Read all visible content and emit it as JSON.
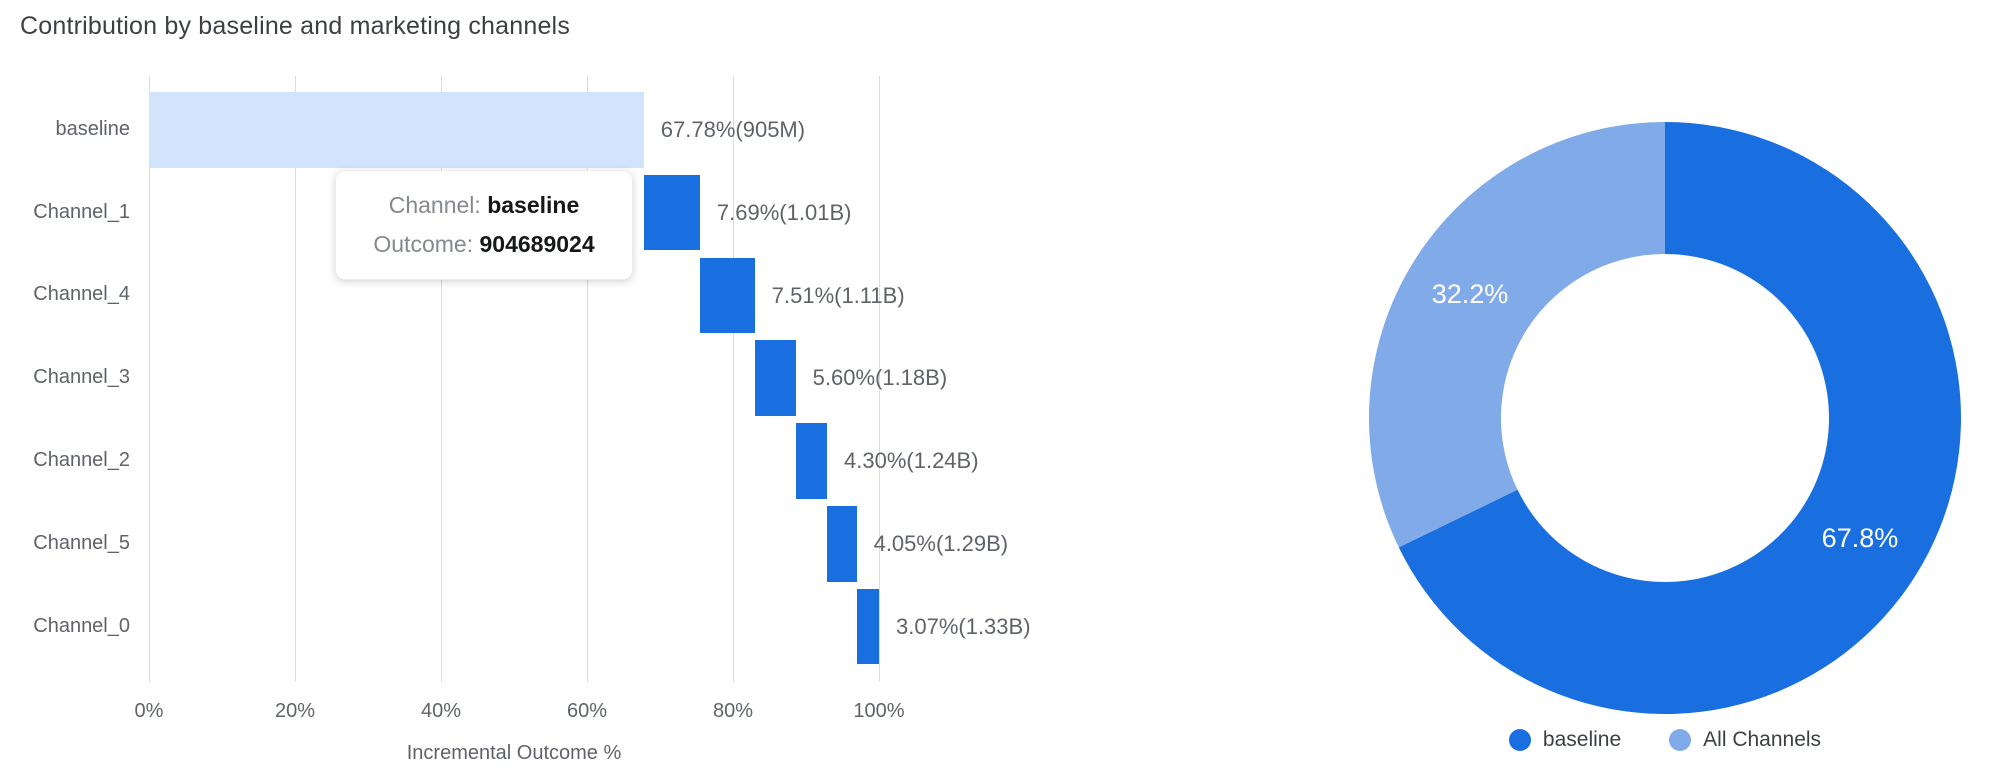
{
  "title": "Contribution by baseline and marketing channels",
  "colors": {
    "bar_blue": "#1a6fe0",
    "baseline_light": "#d2e3fc",
    "donut_dark": "#1a6fe0",
    "donut_light": "#80abe8",
    "grid": "#dadce0"
  },
  "tooltip": {
    "channel_label": "Channel:",
    "channel_value": "baseline",
    "outcome_label": "Outcome:",
    "outcome_value": "904689024"
  },
  "chart_data": [
    {
      "type": "bar",
      "subtype": "horizontal-waterfall",
      "title": "Contribution by baseline and marketing channels",
      "xlabel": "Incremental Outcome %",
      "xlim": [
        0,
        100
      ],
      "grid": true,
      "x_ticks": [
        "0%",
        "20%",
        "40%",
        "60%",
        "80%",
        "100%"
      ],
      "x_tick_values": [
        0,
        20,
        40,
        60,
        80,
        100
      ],
      "categories": [
        "baseline",
        "Channel_1",
        "Channel_4",
        "Channel_3",
        "Channel_2",
        "Channel_5",
        "Channel_0"
      ],
      "values_pct": [
        67.78,
        7.69,
        7.51,
        5.6,
        4.3,
        4.05,
        3.07
      ],
      "bar_labels": [
        "67.78%(905M)",
        "7.69%(1.01B)",
        "7.51%(1.11B)",
        "5.60%(1.18B)",
        "4.30%(1.24B)",
        "4.05%(1.29B)",
        "3.07%(1.33B)"
      ]
    },
    {
      "type": "pie",
      "subtype": "donut",
      "labels": [
        "baseline",
        "All Channels"
      ],
      "values": [
        67.8,
        32.2
      ],
      "slice_labels": [
        "67.8%",
        "32.2%"
      ],
      "legend_position": "bottom"
    }
  ]
}
